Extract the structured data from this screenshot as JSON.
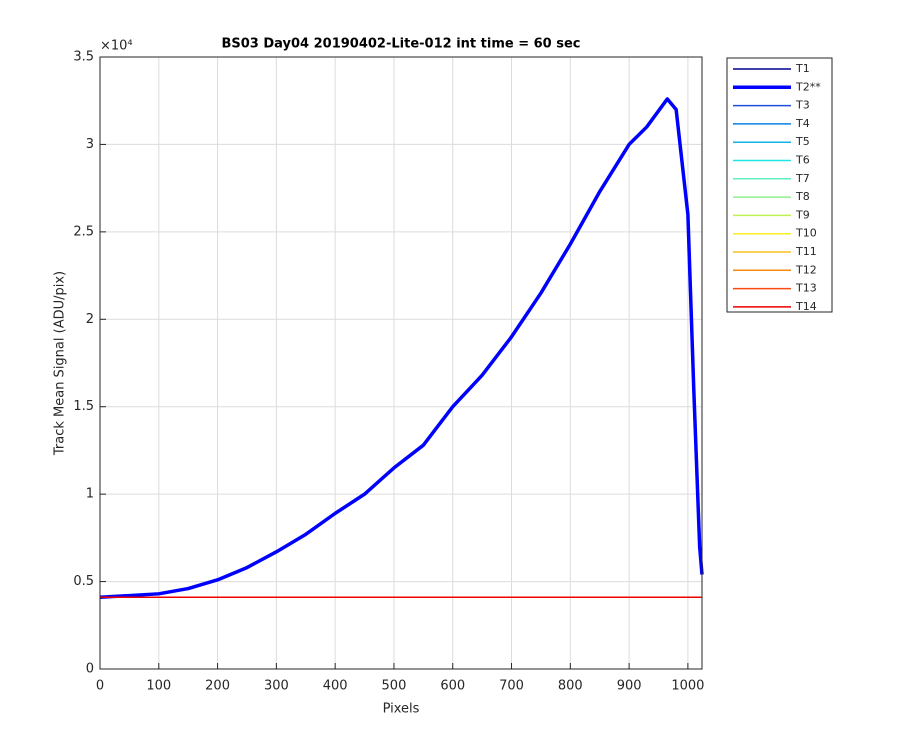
{
  "chart_data": {
    "type": "line",
    "title": "BS03 Day04 20190402-Lite-012 int time = 60 sec",
    "x_label": "Pixels",
    "y_label": "Track Mean Signal (ADU/pix)",
    "y_exponent": "×10⁴",
    "xlim": [
      0,
      1024
    ],
    "ylim": [
      0,
      35000
    ],
    "xticks": [
      0,
      100,
      200,
      300,
      400,
      500,
      600,
      700,
      800,
      900,
      1000
    ],
    "yticks": [
      0,
      {
        "value": 5000,
        "label": "0.5"
      },
      {
        "value": 10000,
        "label": "1"
      },
      {
        "value": 15000,
        "label": "1.5"
      },
      {
        "value": 20000,
        "label": "2"
      },
      {
        "value": 25000,
        "label": "2.5"
      },
      {
        "value": 30000,
        "label": "3"
      },
      {
        "value": 35000,
        "label": "3.5"
      }
    ],
    "grid": true,
    "legend": "outside-right",
    "x": [
      0,
      50,
      100,
      150,
      200,
      250,
      300,
      350,
      400,
      450,
      500,
      550,
      600,
      650,
      700,
      750,
      800,
      850,
      900,
      930,
      965,
      980,
      1000,
      1010,
      1020,
      1024
    ],
    "series": [
      {
        "name": "T1",
        "color": "#00008f",
        "values": [
          4100,
          4100,
          4100,
          4100,
          4100,
          4100,
          4100,
          4100,
          4100,
          4100,
          4100,
          4100,
          4100,
          4100,
          4100,
          4100,
          4100,
          4100,
          4100,
          4100,
          4100,
          4100,
          4100,
          4100,
          4100,
          4100
        ]
      },
      {
        "name": "T2**",
        "color": "#0000ff",
        "values": [
          4100,
          4200,
          4300,
          4600,
          5100,
          5800,
          6700,
          7700,
          8900,
          10000,
          11500,
          12800,
          15000,
          16800,
          19000,
          21500,
          24300,
          27300,
          30000,
          31000,
          32600,
          32000,
          26000,
          16000,
          7000,
          5400
        ]
      },
      {
        "name": "T3",
        "color": "#1f4fd8",
        "values": [
          4100,
          4100,
          4100,
          4100,
          4100,
          4100,
          4100,
          4100,
          4100,
          4100,
          4100,
          4100,
          4100,
          4100,
          4100,
          4100,
          4100,
          4100,
          4100,
          4100,
          4100,
          4100,
          4100,
          4100,
          4100,
          4100
        ]
      },
      {
        "name": "T4",
        "color": "#0a7fe6",
        "values": [
          4100,
          4100,
          4100,
          4100,
          4100,
          4100,
          4100,
          4100,
          4100,
          4100,
          4100,
          4100,
          4100,
          4100,
          4100,
          4100,
          4100,
          4100,
          4100,
          4100,
          4100,
          4100,
          4100,
          4100,
          4100,
          4100
        ]
      },
      {
        "name": "T5",
        "color": "#10b4e6",
        "values": [
          4100,
          4100,
          4100,
          4100,
          4100,
          4100,
          4100,
          4100,
          4100,
          4100,
          4100,
          4100,
          4100,
          4100,
          4100,
          4100,
          4100,
          4100,
          4100,
          4100,
          4100,
          4100,
          4100,
          4100,
          4100,
          4100
        ]
      },
      {
        "name": "T6",
        "color": "#20e6e6",
        "values": [
          4100,
          4100,
          4100,
          4100,
          4100,
          4100,
          4100,
          4100,
          4100,
          4100,
          4100,
          4100,
          4100,
          4100,
          4100,
          4100,
          4100,
          4100,
          4100,
          4100,
          4100,
          4100,
          4100,
          4100,
          4100,
          4100
        ]
      },
      {
        "name": "T7",
        "color": "#60f0c0",
        "values": [
          4100,
          4100,
          4100,
          4100,
          4100,
          4100,
          4100,
          4100,
          4100,
          4100,
          4100,
          4100,
          4100,
          4100,
          4100,
          4100,
          4100,
          4100,
          4100,
          4100,
          4100,
          4100,
          4100,
          4100,
          4100,
          4100
        ]
      },
      {
        "name": "T8",
        "color": "#90f090",
        "values": [
          4100,
          4100,
          4100,
          4100,
          4100,
          4100,
          4100,
          4100,
          4100,
          4100,
          4100,
          4100,
          4100,
          4100,
          4100,
          4100,
          4100,
          4100,
          4100,
          4100,
          4100,
          4100,
          4100,
          4100,
          4100,
          4100
        ]
      },
      {
        "name": "T9",
        "color": "#c0f050",
        "values": [
          4100,
          4100,
          4100,
          4100,
          4100,
          4100,
          4100,
          4100,
          4100,
          4100,
          4100,
          4100,
          4100,
          4100,
          4100,
          4100,
          4100,
          4100,
          4100,
          4100,
          4100,
          4100,
          4100,
          4100,
          4100,
          4100
        ]
      },
      {
        "name": "T10",
        "color": "#f8f020",
        "values": [
          4100,
          4100,
          4100,
          4100,
          4100,
          4100,
          4100,
          4100,
          4100,
          4100,
          4100,
          4100,
          4100,
          4100,
          4100,
          4100,
          4100,
          4100,
          4100,
          4100,
          4100,
          4100,
          4100,
          4100,
          4100,
          4100
        ]
      },
      {
        "name": "T11",
        "color": "#f8c020",
        "values": [
          4100,
          4100,
          4100,
          4100,
          4100,
          4100,
          4100,
          4100,
          4100,
          4100,
          4100,
          4100,
          4100,
          4100,
          4100,
          4100,
          4100,
          4100,
          4100,
          4100,
          4100,
          4100,
          4100,
          4100,
          4100,
          4100
        ]
      },
      {
        "name": "T12",
        "color": "#f88a10",
        "values": [
          4100,
          4100,
          4100,
          4100,
          4100,
          4100,
          4100,
          4100,
          4100,
          4100,
          4100,
          4100,
          4100,
          4100,
          4100,
          4100,
          4100,
          4100,
          4100,
          4100,
          4100,
          4100,
          4100,
          4100,
          4100,
          4100
        ]
      },
      {
        "name": "T13",
        "color": "#f84a10",
        "values": [
          4100,
          4100,
          4100,
          4100,
          4100,
          4100,
          4100,
          4100,
          4100,
          4100,
          4100,
          4100,
          4100,
          4100,
          4100,
          4100,
          4100,
          4100,
          4100,
          4100,
          4100,
          4100,
          4100,
          4100,
          4100,
          4100
        ]
      },
      {
        "name": "T14",
        "color": "#ee0000",
        "values": [
          4100,
          4100,
          4100,
          4100,
          4100,
          4100,
          4100,
          4100,
          4100,
          4100,
          4100,
          4100,
          4100,
          4100,
          4100,
          4100,
          4100,
          4100,
          4100,
          4100,
          4100,
          4100,
          4100,
          4100,
          4100,
          4100
        ]
      }
    ]
  }
}
